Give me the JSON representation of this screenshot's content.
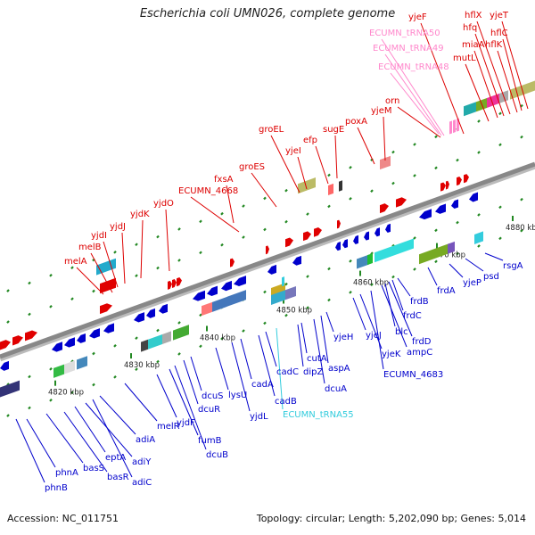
{
  "header": {
    "title": "Escherichia coli UMN026, complete genome"
  },
  "footer": {
    "accession": "Accession: NC_011751",
    "summary": "Topology: circular; Length: 5,202,090 bp; Genes: 5,014"
  },
  "colors": {
    "forward": "#e00000",
    "reverse": "#0000cc",
    "trna_forward": "#ff88cc",
    "trna_reverse": "#33ccdd",
    "backbone": "#888888",
    "tick": "#228822",
    "label_forward": "#dd0000",
    "label_reverse": "#0000cc"
  },
  "ticks": [
    "4820 kbp",
    "4830 kbp",
    "4840 kbp",
    "4850 kbp",
    "4860 kbp",
    "4870 kbp",
    "4880 kbp"
  ],
  "labels_forward": [
    {
      "text": "melA"
    },
    {
      "text": "melB"
    },
    {
      "text": "yjdI"
    },
    {
      "text": "yjdJ"
    },
    {
      "text": "yjdK"
    },
    {
      "text": "yjdO"
    },
    {
      "text": "ECUMN_4668"
    },
    {
      "text": "fxsA"
    },
    {
      "text": "groES"
    },
    {
      "text": "groEL"
    },
    {
      "text": "yjeI"
    },
    {
      "text": "efp"
    },
    {
      "text": "sugE"
    },
    {
      "text": "poxA"
    },
    {
      "text": "yjeM"
    },
    {
      "text": "orn"
    },
    {
      "text": "ECUMN_tRNA48",
      "kind": "trna"
    },
    {
      "text": "ECUMN_tRNA49",
      "kind": "trna"
    },
    {
      "text": "ECUMN_tRNA50",
      "kind": "trna"
    },
    {
      "text": "mutL"
    },
    {
      "text": "miaA"
    },
    {
      "text": "hfq"
    },
    {
      "text": "hflX"
    },
    {
      "text": "hflK"
    },
    {
      "text": "hflC"
    },
    {
      "text": "yjeT"
    },
    {
      "text": "yjeF"
    }
  ],
  "labels_reverse": [
    {
      "text": "phnB"
    },
    {
      "text": "phnA"
    },
    {
      "text": "basS"
    },
    {
      "text": "basR"
    },
    {
      "text": "eptA"
    },
    {
      "text": "adiY"
    },
    {
      "text": "adiC"
    },
    {
      "text": "adiA"
    },
    {
      "text": "melR"
    },
    {
      "text": "yjdF"
    },
    {
      "text": "fumB"
    },
    {
      "text": "dcuB"
    },
    {
      "text": "dcuR"
    },
    {
      "text": "dcuS"
    },
    {
      "text": "lysU"
    },
    {
      "text": "yjdL"
    },
    {
      "text": "cadA"
    },
    {
      "text": "cadB"
    },
    {
      "text": "cadC"
    },
    {
      "text": "ECUMN_tRNA55",
      "kind": "trna"
    },
    {
      "text": "dipZ"
    },
    {
      "text": "cutA"
    },
    {
      "text": "dcuA"
    },
    {
      "text": "aspA"
    },
    {
      "text": "yjeH"
    },
    {
      "text": "yjeJ"
    },
    {
      "text": "yjeK"
    },
    {
      "text": "ECUMN_4683"
    },
    {
      "text": "ampC"
    },
    {
      "text": "blc"
    },
    {
      "text": "frdD"
    },
    {
      "text": "frdC"
    },
    {
      "text": "frdB"
    },
    {
      "text": "frdA"
    },
    {
      "text": "yjeP"
    },
    {
      "text": "psd"
    },
    {
      "text": "rsgA"
    }
  ]
}
